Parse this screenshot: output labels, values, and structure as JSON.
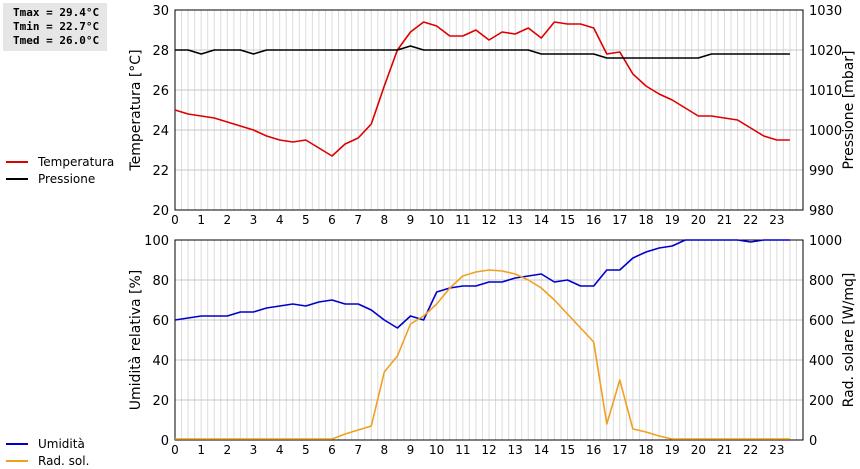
{
  "stats": {
    "tmax": "Tmax = 29.4°C",
    "tmin": "Tmin = 22.7°C",
    "tmed": "Tmed = 26.0°C"
  },
  "chart_data": [
    {
      "type": "line",
      "ylabel": "Temperatura [°C]",
      "y2label": "Pressione [mbar]",
      "ylim": [
        20,
        30
      ],
      "y2lim": [
        980,
        1030
      ],
      "yticks": [
        20,
        22,
        24,
        26,
        28,
        30
      ],
      "y2ticks": [
        980,
        990,
        1000,
        1010,
        1020,
        1030
      ],
      "xlim": [
        0,
        24
      ],
      "xticks": [
        0,
        1,
        2,
        3,
        4,
        5,
        6,
        7,
        8,
        9,
        10,
        11,
        12,
        13,
        14,
        15,
        16,
        17,
        18,
        19,
        20,
        21,
        22,
        23
      ],
      "grid": true,
      "legend": "left",
      "series": [
        {
          "name": "Temperatura",
          "axis": "left",
          "color": "#dd0000",
          "x": [
            0,
            0.5,
            1,
            1.5,
            2,
            2.5,
            3,
            3.5,
            4,
            4.5,
            5,
            5.5,
            6,
            6.5,
            7,
            7.5,
            8,
            8.5,
            9,
            9.5,
            10,
            10.5,
            11,
            11.5,
            12,
            12.5,
            13,
            13.5,
            14,
            14.5,
            15,
            15.5,
            16,
            16.5,
            17,
            17.5,
            18,
            18.5,
            19,
            19.5,
            20,
            20.5,
            21,
            21.5,
            22,
            22.5,
            23,
            23.5
          ],
          "values": [
            25.0,
            24.8,
            24.7,
            24.6,
            24.4,
            24.2,
            24.0,
            23.7,
            23.5,
            23.4,
            23.5,
            23.1,
            22.7,
            23.3,
            23.6,
            24.3,
            26.2,
            28.0,
            28.9,
            29.4,
            29.2,
            28.7,
            28.7,
            29.0,
            28.5,
            28.9,
            28.8,
            29.1,
            28.6,
            29.4,
            29.3,
            29.3,
            29.1,
            27.8,
            27.9,
            26.8,
            26.2,
            25.8,
            25.5,
            25.1,
            24.7,
            24.7,
            24.6,
            24.5,
            24.1,
            23.7,
            23.5,
            23.5
          ]
        },
        {
          "name": "Pressione",
          "axis": "right",
          "color": "#000000",
          "x": [
            0,
            0.5,
            1,
            1.5,
            2,
            2.5,
            3,
            3.5,
            4,
            4.5,
            5,
            5.5,
            6,
            6.5,
            7,
            7.5,
            8,
            8.5,
            9,
            9.5,
            10,
            10.5,
            11,
            11.5,
            12,
            12.5,
            13,
            13.5,
            14,
            14.5,
            15,
            15.5,
            16,
            16.5,
            17,
            17.5,
            18,
            18.5,
            19,
            19.5,
            20,
            20.5,
            21,
            21.5,
            22,
            22.5,
            23,
            23.5
          ],
          "values": [
            1020,
            1020,
            1019,
            1020,
            1020,
            1020,
            1019,
            1020,
            1020,
            1020,
            1020,
            1020,
            1020,
            1020,
            1020,
            1020,
            1020,
            1020,
            1021,
            1020,
            1020,
            1020,
            1020,
            1020,
            1020,
            1020,
            1020,
            1020,
            1019,
            1019,
            1019,
            1019,
            1019,
            1018,
            1018,
            1018,
            1018,
            1018,
            1018,
            1018,
            1018,
            1019,
            1019,
            1019,
            1019,
            1019,
            1019,
            1019
          ]
        }
      ]
    },
    {
      "type": "line",
      "ylabel": "Umidità relativa [%]",
      "y2label": "Rad. solare [W/mq]",
      "ylim": [
        0,
        100
      ],
      "y2lim": [
        0,
        1000
      ],
      "yticks": [
        0,
        20,
        40,
        60,
        80,
        100
      ],
      "y2ticks": [
        0,
        200,
        400,
        600,
        800,
        1000
      ],
      "xlim": [
        0,
        24
      ],
      "xticks": [
        0,
        1,
        2,
        3,
        4,
        5,
        6,
        7,
        8,
        9,
        10,
        11,
        12,
        13,
        14,
        15,
        16,
        17,
        18,
        19,
        20,
        21,
        22,
        23
      ],
      "grid": true,
      "legend": "left",
      "series": [
        {
          "name": "Umidità",
          "axis": "left",
          "color": "#0000cc",
          "x": [
            0,
            0.5,
            1,
            1.5,
            2,
            2.5,
            3,
            3.5,
            4,
            4.5,
            5,
            5.5,
            6,
            6.5,
            7,
            7.5,
            8,
            8.5,
            9,
            9.5,
            10,
            10.5,
            11,
            11.5,
            12,
            12.5,
            13,
            13.5,
            14,
            14.5,
            15,
            15.5,
            16,
            16.5,
            17,
            17.5,
            18,
            18.5,
            19,
            19.5,
            20,
            20.5,
            21,
            21.5,
            22,
            22.5,
            23,
            23.5
          ],
          "values": [
            60,
            61,
            62,
            62,
            62,
            64,
            64,
            66,
            67,
            68,
            67,
            69,
            70,
            68,
            68,
            65,
            60,
            56,
            62,
            60,
            74,
            76,
            77,
            77,
            79,
            79,
            81,
            82,
            83,
            79,
            80,
            77,
            77,
            85,
            85,
            91,
            94,
            96,
            97,
            100,
            100,
            100,
            100,
            100,
            99,
            100,
            100,
            100
          ]
        },
        {
          "name": "Rad. sol.",
          "axis": "right",
          "color": "#f0a020",
          "x": [
            0,
            0.5,
            1,
            1.5,
            2,
            2.5,
            3,
            3.5,
            4,
            4.5,
            5,
            5.5,
            6,
            6.5,
            7,
            7.5,
            8,
            8.5,
            9,
            9.5,
            10,
            10.5,
            11,
            11.5,
            12,
            12.5,
            13,
            13.5,
            14,
            14.5,
            15,
            15.5,
            16,
            16.5,
            17,
            17.5,
            18,
            18.5,
            19,
            19.5,
            20,
            20.5,
            21,
            21.5,
            22,
            22.5,
            23,
            23.5
          ],
          "values": [
            5,
            5,
            5,
            5,
            5,
            5,
            5,
            5,
            5,
            5,
            5,
            5,
            5,
            30,
            50,
            70,
            340,
            420,
            580,
            620,
            680,
            760,
            820,
            840,
            850,
            845,
            830,
            800,
            760,
            700,
            630,
            560,
            490,
            80,
            300,
            55,
            40,
            20,
            5,
            5,
            5,
            5,
            5,
            5,
            5,
            5,
            5,
            5
          ]
        }
      ]
    }
  ]
}
